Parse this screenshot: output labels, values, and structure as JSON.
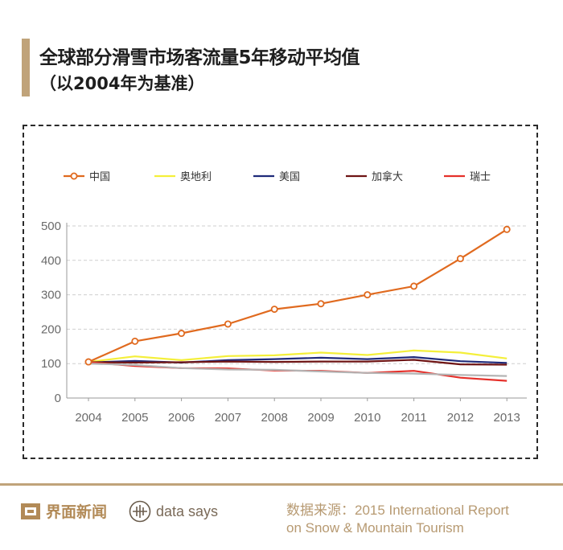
{
  "header": {
    "title": "全球部分滑雪市场客流量5年移动平均值",
    "subtitle": "（以2004年为基准）"
  },
  "footer": {
    "brand_name": "界面新闻",
    "brand_sub": "data says",
    "source_line1": "数据来源：2015 International Report",
    "source_line2": "on Snow & Mountain Tourism"
  },
  "chart_data": {
    "type": "line",
    "x": [
      "2004",
      "2005",
      "2006",
      "2007",
      "2008",
      "2009",
      "2010",
      "2011",
      "2012",
      "2013"
    ],
    "ylim": [
      0,
      500
    ],
    "yticks": [
      0,
      100,
      200,
      300,
      400,
      500
    ],
    "grid": true,
    "legend_position": "top",
    "series": [
      {
        "name": "中国",
        "color": "#e06a1f",
        "markers": true,
        "values": [
          105,
          165,
          188,
          215,
          258,
          274,
          300,
          325,
          405,
          490
        ]
      },
      {
        "name": "奥地利",
        "color": "#f4ef3a",
        "markers": false,
        "values": [
          105,
          121,
          110,
          122,
          124,
          132,
          125,
          138,
          132,
          115
        ]
      },
      {
        "name": "美国",
        "color": "#1f2a7a",
        "markers": false,
        "values": [
          103,
          108,
          103,
          110,
          113,
          117,
          113,
          119,
          107,
          102
        ]
      },
      {
        "name": "加拿大",
        "color": "#6e1414",
        "markers": false,
        "values": [
          104,
          103,
          104,
          106,
          105,
          106,
          106,
          111,
          98,
          97
        ]
      },
      {
        "name": "瑞士",
        "color": "#e5302a",
        "markers": false,
        "values": [
          104,
          93,
          87,
          86,
          80,
          79,
          73,
          79,
          59,
          50
        ]
      },
      {
        "name": "",
        "color": "#b4b4b4",
        "markers": false,
        "values": [
          100,
          96,
          87,
          83,
          82,
          77,
          73,
          71,
          67,
          64
        ]
      }
    ]
  }
}
